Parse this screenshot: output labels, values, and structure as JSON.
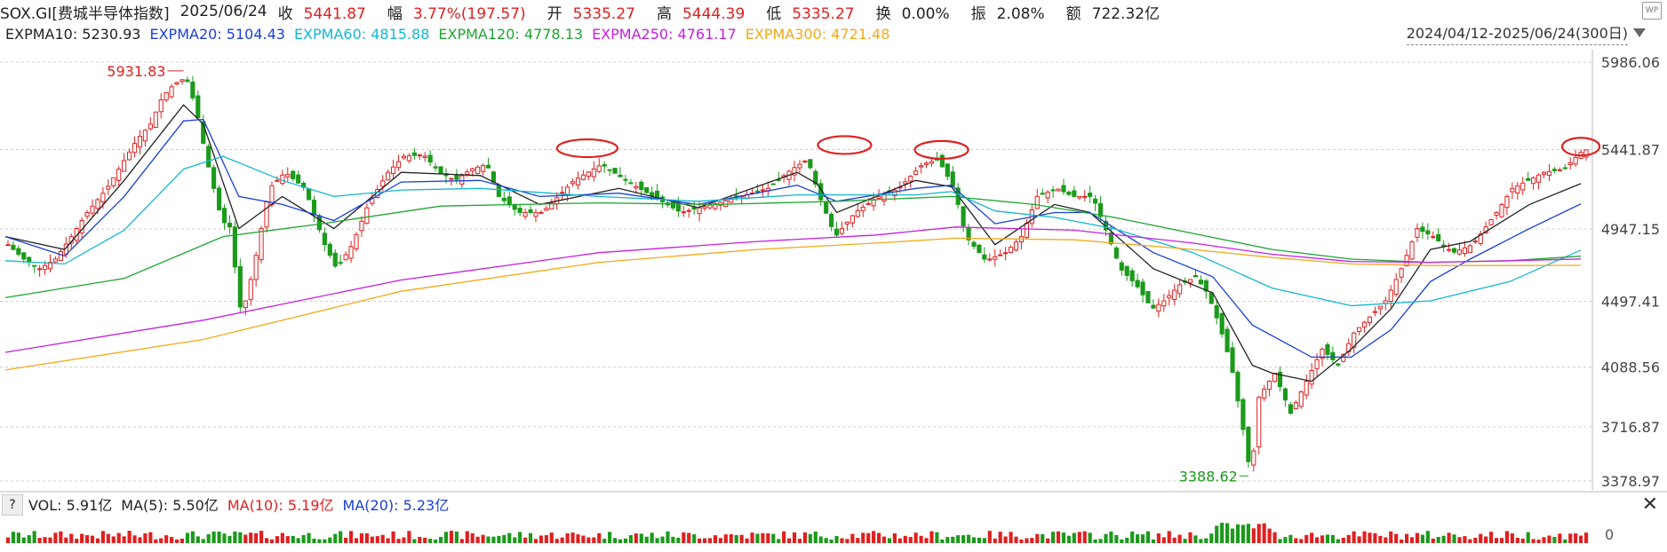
{
  "header": {
    "symbol": "SOX.GI[费城半导体指数]",
    "date": "2025/06/24",
    "close_label": "收",
    "close": "5441.87",
    "change_label": "幅",
    "change": "3.77%(197.57)",
    "open_label": "开",
    "open": "5335.27",
    "high_label": "高",
    "high": "5444.39",
    "low_label": "低",
    "low": "5335.27",
    "turnover_label": "换",
    "turnover": "0.00%",
    "amplitude_label": "振",
    "amplitude": "2.08%",
    "amount_label": "额",
    "amount": "722.32亿"
  },
  "ma": [
    {
      "label": "EXPMA10: 5230.93",
      "color": "#222222"
    },
    {
      "label": "EXPMA20: 5104.43",
      "color": "#1a3fd6"
    },
    {
      "label": "EXPMA60: 4815.88",
      "color": "#12b7cf"
    },
    {
      "label": "EXPMA120: 4778.13",
      "color": "#1ea532"
    },
    {
      "label": "EXPMA250: 4761.17",
      "color": "#c61fe0"
    },
    {
      "label": "EXPMA300: 4721.48",
      "color": "#f2a91b"
    }
  ],
  "range_label": "2024/04/12-2025/06/24(300日)",
  "corner_icon": "WP",
  "volume": {
    "q": "?",
    "vol": "VOL: 5.91亿",
    "ma5": "MA(5): 5.50亿",
    "ma10": "MA(10): 5.19亿",
    "ma20": "MA(20): 5.23亿",
    "ma10_color": "#e02020",
    "ma20_color": "#1a3fd6",
    "zero": "0"
  },
  "close_icon": "✕",
  "colors": {
    "up": "#e02020",
    "down": "#1b9a1b",
    "grid": "#cfcfcf",
    "annot": "#e02020"
  },
  "chart_data": {
    "type": "candlestick",
    "title": "SOX.GI[费城半导体指数]",
    "date_range": [
      "2024/04/12",
      "2025/06/24"
    ],
    "num_bars": 300,
    "y_ticks": [
      5986.06,
      5441.87,
      4947.15,
      4497.41,
      4088.56,
      3716.87,
      3378.97
    ],
    "ylim": [
      3378.97,
      5986.06
    ],
    "annotations": [
      {
        "text": "5931.83",
        "type": "max_label",
        "value": 5931.83
      },
      {
        "text": "3388.62",
        "type": "min_label",
        "value": 3388.62
      }
    ],
    "series": [
      {
        "name": "EXPMA10",
        "last": 5230.93
      },
      {
        "name": "EXPMA20",
        "last": 5104.43
      },
      {
        "name": "EXPMA60",
        "last": 4815.88
      },
      {
        "name": "EXPMA120",
        "last": 4778.13
      },
      {
        "name": "EXPMA250",
        "last": 4761.17
      },
      {
        "name": "EXPMA300",
        "last": 4721.48
      }
    ],
    "close_path": [
      [
        0,
        4850
      ],
      [
        8,
        4760
      ],
      [
        16,
        4700
      ],
      [
        24,
        4760
      ],
      [
        32,
        4900
      ],
      [
        40,
        5050
      ],
      [
        50,
        5200
      ],
      [
        60,
        5400
      ],
      [
        65,
        5500
      ],
      [
        72,
        5600
      ],
      [
        78,
        5770
      ],
      [
        84,
        5850
      ],
      [
        90,
        5890
      ],
      [
        95,
        5700
      ],
      [
        100,
        5400
      ],
      [
        108,
        5000
      ],
      [
        112,
        4960
      ],
      [
        118,
        4400
      ],
      [
        124,
        4700
      ],
      [
        132,
        5200
      ],
      [
        140,
        5300
      ],
      [
        150,
        5200
      ],
      [
        160,
        4850
      ],
      [
        166,
        4700
      ],
      [
        174,
        4850
      ],
      [
        182,
        5100
      ],
      [
        192,
        5300
      ],
      [
        200,
        5400
      ],
      [
        210,
        5410
      ],
      [
        218,
        5300
      ],
      [
        226,
        5250
      ],
      [
        234,
        5320
      ],
      [
        242,
        5350
      ],
      [
        248,
        5150
      ],
      [
        258,
        5050
      ],
      [
        270,
        5050
      ],
      [
        286,
        5250
      ],
      [
        300,
        5350
      ],
      [
        312,
        5250
      ],
      [
        326,
        5150
      ],
      [
        340,
        5050
      ],
      [
        356,
        5100
      ],
      [
        370,
        5150
      ],
      [
        384,
        5200
      ],
      [
        396,
        5320
      ],
      [
        404,
        5380
      ],
      [
        410,
        5150
      ],
      [
        418,
        4900
      ],
      [
        428,
        5050
      ],
      [
        440,
        5150
      ],
      [
        450,
        5200
      ],
      [
        462,
        5350
      ],
      [
        470,
        5380
      ],
      [
        478,
        5200
      ],
      [
        484,
        4900
      ],
      [
        494,
        4750
      ],
      [
        504,
        4800
      ],
      [
        512,
        4900
      ],
      [
        520,
        5150
      ],
      [
        530,
        5200
      ],
      [
        538,
        5150
      ],
      [
        548,
        5150
      ],
      [
        556,
        4900
      ],
      [
        562,
        4700
      ],
      [
        570,
        4600
      ],
      [
        578,
        4450
      ],
      [
        584,
        4500
      ],
      [
        592,
        4600
      ],
      [
        600,
        4650
      ],
      [
        606,
        4550
      ],
      [
        612,
        4350
      ],
      [
        618,
        4100
      ],
      [
        624,
        3700
      ],
      [
        628,
        3400
      ],
      [
        632,
        3900
      ],
      [
        640,
        4050
      ],
      [
        648,
        3800
      ],
      [
        656,
        4000
      ],
      [
        664,
        4200
      ],
      [
        672,
        4100
      ],
      [
        680,
        4300
      ],
      [
        688,
        4400
      ],
      [
        696,
        4500
      ],
      [
        704,
        4700
      ],
      [
        712,
        4950
      ],
      [
        720,
        4900
      ],
      [
        730,
        4800
      ],
      [
        740,
        4850
      ],
      [
        752,
        5050
      ],
      [
        760,
        5200
      ],
      [
        768,
        5250
      ],
      [
        776,
        5300
      ],
      [
        786,
        5320
      ],
      [
        796,
        5440
      ]
    ],
    "expma10_path": [
      [
        0,
        4900
      ],
      [
        30,
        4820
      ],
      [
        60,
        5250
      ],
      [
        90,
        5720
      ],
      [
        100,
        5600
      ],
      [
        118,
        4950
      ],
      [
        140,
        5150
      ],
      [
        166,
        4950
      ],
      [
        200,
        5300
      ],
      [
        240,
        5280
      ],
      [
        270,
        5100
      ],
      [
        310,
        5200
      ],
      [
        350,
        5080
      ],
      [
        400,
        5300
      ],
      [
        410,
        5230
      ],
      [
        420,
        5050
      ],
      [
        460,
        5250
      ],
      [
        478,
        5210
      ],
      [
        500,
        4850
      ],
      [
        530,
        5100
      ],
      [
        548,
        5050
      ],
      [
        580,
        4700
      ],
      [
        610,
        4550
      ],
      [
        630,
        4100
      ],
      [
        640,
        4050
      ],
      [
        660,
        4000
      ],
      [
        680,
        4200
      ],
      [
        700,
        4450
      ],
      [
        720,
        4820
      ],
      [
        740,
        4870
      ],
      [
        770,
        5100
      ],
      [
        796,
        5230
      ]
    ],
    "expma20_path": [
      [
        0,
        4900
      ],
      [
        30,
        4780
      ],
      [
        60,
        5150
      ],
      [
        90,
        5620
      ],
      [
        100,
        5630
      ],
      [
        118,
        5150
      ],
      [
        140,
        5100
      ],
      [
        166,
        5000
      ],
      [
        200,
        5240
      ],
      [
        240,
        5250
      ],
      [
        270,
        5150
      ],
      [
        310,
        5170
      ],
      [
        350,
        5100
      ],
      [
        400,
        5220
      ],
      [
        420,
        5120
      ],
      [
        460,
        5200
      ],
      [
        478,
        5220
      ],
      [
        500,
        4980
      ],
      [
        530,
        5050
      ],
      [
        548,
        5050
      ],
      [
        580,
        4800
      ],
      [
        610,
        4650
      ],
      [
        630,
        4350
      ],
      [
        660,
        4150
      ],
      [
        680,
        4150
      ],
      [
        700,
        4320
      ],
      [
        720,
        4620
      ],
      [
        740,
        4760
      ],
      [
        770,
        4950
      ],
      [
        796,
        5104
      ]
    ],
    "expma60_path": [
      [
        0,
        4750
      ],
      [
        30,
        4730
      ],
      [
        60,
        4940
      ],
      [
        90,
        5320
      ],
      [
        110,
        5400
      ],
      [
        140,
        5250
      ],
      [
        166,
        5150
      ],
      [
        200,
        5190
      ],
      [
        240,
        5200
      ],
      [
        300,
        5150
      ],
      [
        350,
        5120
      ],
      [
        400,
        5160
      ],
      [
        460,
        5160
      ],
      [
        478,
        5180
      ],
      [
        500,
        5060
      ],
      [
        530,
        5020
      ],
      [
        560,
        4950
      ],
      [
        600,
        4800
      ],
      [
        640,
        4580
      ],
      [
        680,
        4470
      ],
      [
        720,
        4500
      ],
      [
        760,
        4620
      ],
      [
        796,
        4816
      ]
    ],
    "expma120_path": [
      [
        0,
        4520
      ],
      [
        60,
        4640
      ],
      [
        110,
        4900
      ],
      [
        160,
        4980
      ],
      [
        220,
        5090
      ],
      [
        300,
        5110
      ],
      [
        360,
        5100
      ],
      [
        420,
        5120
      ],
      [
        478,
        5150
      ],
      [
        520,
        5100
      ],
      [
        560,
        5020
      ],
      [
        600,
        4920
      ],
      [
        640,
        4820
      ],
      [
        680,
        4760
      ],
      [
        720,
        4740
      ],
      [
        760,
        4750
      ],
      [
        796,
        4778
      ]
    ],
    "expma250_path": [
      [
        0,
        4180
      ],
      [
        100,
        4380
      ],
      [
        200,
        4630
      ],
      [
        300,
        4800
      ],
      [
        380,
        4870
      ],
      [
        440,
        4910
      ],
      [
        480,
        4960
      ],
      [
        540,
        4940
      ],
      [
        600,
        4860
      ],
      [
        640,
        4790
      ],
      [
        680,
        4745
      ],
      [
        720,
        4740
      ],
      [
        760,
        4750
      ],
      [
        796,
        4761
      ]
    ],
    "expma300_path": [
      [
        0,
        4070
      ],
      [
        100,
        4260
      ],
      [
        200,
        4560
      ],
      [
        300,
        4740
      ],
      [
        380,
        4820
      ],
      [
        440,
        4860
      ],
      [
        480,
        4890
      ],
      [
        540,
        4880
      ],
      [
        600,
        4820
      ],
      [
        640,
        4770
      ],
      [
        680,
        4730
      ],
      [
        720,
        4720
      ],
      [
        760,
        4720
      ],
      [
        796,
        4721
      ]
    ]
  }
}
